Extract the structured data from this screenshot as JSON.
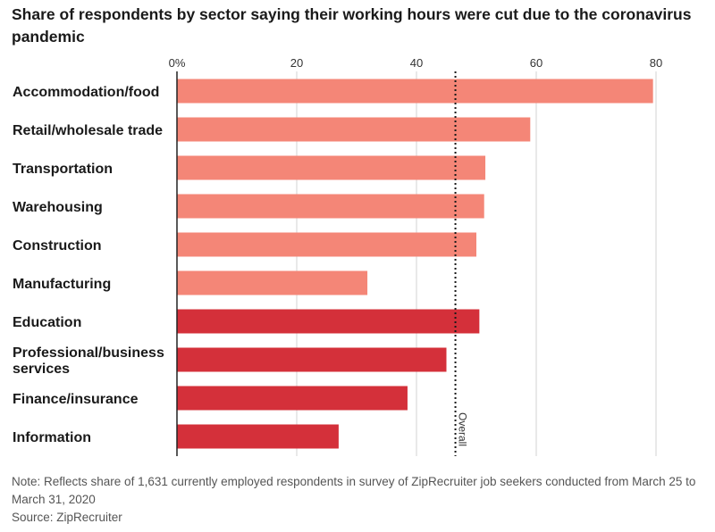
{
  "chart_data": {
    "type": "bar",
    "orientation": "horizontal",
    "title": "Share of respondents by sector saying their working hours were cut due to the coronavirus pandemic",
    "categories": [
      [
        "Accommodation/food"
      ],
      [
        "Retail/wholesale trade"
      ],
      [
        "Transportation"
      ],
      [
        "Warehousing"
      ],
      [
        "Construction"
      ],
      [
        "Manufacturing"
      ],
      [
        "Education"
      ],
      [
        "Professional/business",
        "services"
      ],
      [
        "Finance/insurance"
      ],
      [
        "Information"
      ]
    ],
    "values": [
      79.5,
      59,
      51.5,
      51.3,
      50,
      31.8,
      50.5,
      45,
      38.5,
      27
    ],
    "bar_colors": [
      "#f48677",
      "#f48677",
      "#f48677",
      "#f48677",
      "#f48677",
      "#f48677",
      "#d4303a",
      "#d4303a",
      "#d4303a",
      "#d4303a"
    ],
    "xticks": [
      "0%",
      "20",
      "40",
      "60",
      "80"
    ],
    "xtick_values": [
      0,
      20,
      40,
      60,
      80
    ],
    "xlim": [
      0,
      80
    ],
    "reference_line": {
      "label": "Overall",
      "value": 46.5
    },
    "grid": true,
    "note": "Note: Reflects share of 1,631 currently employed respondents in survey of ZipRecruiter job seekers conducted from March 25 to March 31, 2020",
    "source": "Source: ZipRecruiter"
  },
  "colors": {
    "light_bar": "#f48677",
    "dark_bar": "#d4303a",
    "grid": "#d3d3d3",
    "axis": "#222222"
  }
}
